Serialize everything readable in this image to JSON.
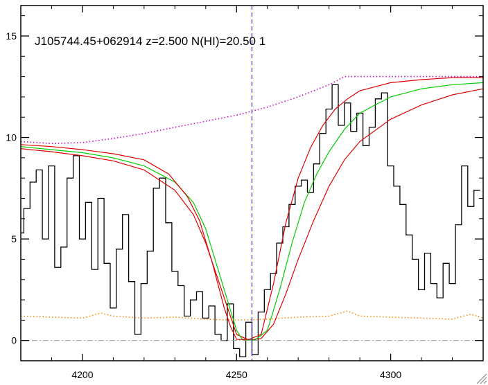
{
  "chart_data": {
    "type": "line",
    "title": "J105744.45+062914 z=2.500 N(HI)=20.50 1",
    "xlabel": "",
    "ylabel": "",
    "xlim": [
      4180,
      4330
    ],
    "ylim": [
      -1,
      16.5
    ],
    "x_ticks": [
      4200,
      4250,
      4300
    ],
    "y_ticks": [
      0,
      5,
      10,
      15
    ],
    "grid": false,
    "vline": {
      "x": 4255,
      "color": "#0000cc",
      "style": "dashed"
    },
    "hline": {
      "y": 0,
      "color": "#999999",
      "style": "dash-dot"
    },
    "series": [
      {
        "role": "spectrum-flux",
        "color": "#000000",
        "style": "step",
        "x": [
          4180,
          4182,
          4184,
          4186,
          4188,
          4190,
          4192,
          4194,
          4196,
          4198,
          4200,
          4202,
          4204,
          4206,
          4208,
          4210,
          4212,
          4214,
          4216,
          4218,
          4220,
          4222,
          4224,
          4226,
          4228,
          4230,
          4232,
          4234,
          4236,
          4238,
          4240,
          4242,
          4244,
          4246,
          4248,
          4250,
          4252,
          4254,
          4256,
          4258,
          4260,
          4262,
          4264,
          4266,
          4268,
          4270,
          4272,
          4274,
          4276,
          4278,
          4280,
          4282,
          4284,
          4286,
          4288,
          4290,
          4292,
          4294,
          4296,
          4298,
          4300,
          4302,
          4304,
          4306,
          4308,
          4310,
          4312,
          4314,
          4316,
          4318,
          4320,
          4322,
          4324,
          4326,
          4328
        ],
        "values": [
          5.3,
          6.5,
          7.8,
          8.4,
          5.0,
          8.6,
          3.6,
          4.6,
          8.0,
          9.1,
          5.0,
          6.8,
          3.5,
          7.0,
          3.8,
          1.6,
          4.5,
          6.2,
          2.9,
          0.3,
          2.8,
          4.4,
          7.5,
          8.0,
          5.8,
          3.4,
          2.7,
          1.2,
          2.0,
          2.4,
          1.1,
          1.7,
          0.3,
          0.0,
          1.8,
          -0.4,
          -0.8,
          0.9,
          -0.7,
          1.4,
          2.5,
          3.3,
          4.8,
          5.6,
          6.7,
          7.6,
          7.9,
          7.3,
          8.7,
          10.2,
          11.4,
          12.6,
          10.6,
          11.7,
          10.3,
          11.2,
          9.6,
          10.5,
          11.9,
          12.2,
          8.6,
          7.6,
          6.7,
          5.2,
          4.0,
          2.5,
          4.3,
          2.8,
          2.1,
          3.8,
          2.8,
          5.7,
          8.6,
          6.6,
          7.4
        ]
      },
      {
        "role": "continuum",
        "color": "#cc00cc",
        "style": "dotted",
        "x": [
          4180,
          4190,
          4200,
          4210,
          4220,
          4230,
          4240,
          4250,
          4260,
          4270,
          4280,
          4285,
          4290,
          4300,
          4310,
          4320,
          4330
        ],
        "values": [
          9.8,
          9.7,
          9.75,
          9.95,
          10.2,
          10.5,
          10.8,
          11.1,
          11.5,
          12.0,
          12.6,
          13.0,
          13.0,
          13.0,
          13.0,
          13.0,
          13.0
        ]
      },
      {
        "role": "error",
        "color": "#ff8800",
        "style": "dotted",
        "x": [
          4180,
          4190,
          4200,
          4206,
          4210,
          4220,
          4230,
          4240,
          4250,
          4260,
          4270,
          4280,
          4286,
          4290,
          4300,
          4310,
          4320,
          4326,
          4330
        ],
        "values": [
          1.2,
          1.15,
          1.1,
          1.35,
          1.2,
          1.1,
          1.15,
          1.05,
          1.0,
          1.05,
          1.15,
          1.2,
          1.45,
          1.2,
          1.15,
          1.1,
          1.05,
          1.3,
          1.1
        ]
      },
      {
        "role": "fit-lower",
        "color": "#dd0000",
        "style": "solid",
        "x": [
          4180,
          4190,
          4200,
          4210,
          4220,
          4230,
          4236,
          4240,
          4244,
          4248,
          4250,
          4254,
          4258,
          4262,
          4266,
          4270,
          4275,
          4280,
          4285,
          4290,
          4300,
          4310,
          4320,
          4330
        ],
        "values": [
          9.45,
          9.3,
          9.1,
          8.85,
          8.4,
          7.4,
          6.2,
          4.8,
          3.0,
          1.2,
          0.3,
          0.02,
          0.1,
          0.8,
          2.3,
          4.0,
          5.9,
          7.6,
          8.9,
          9.8,
          10.9,
          11.6,
          12.1,
          12.4
        ]
      },
      {
        "role": "fit-best",
        "color": "#00cc00",
        "style": "solid",
        "x": [
          4180,
          4190,
          4200,
          4210,
          4220,
          4230,
          4236,
          4240,
          4244,
          4248,
          4250,
          4252,
          4256,
          4260,
          4264,
          4268,
          4272,
          4276,
          4280,
          4285,
          4290,
          4300,
          4310,
          4320,
          4330
        ],
        "values": [
          9.55,
          9.4,
          9.25,
          9.0,
          8.6,
          7.8,
          6.8,
          5.5,
          3.5,
          1.5,
          0.5,
          0.02,
          0.02,
          0.5,
          2.5,
          4.8,
          6.8,
          8.2,
          9.3,
          10.4,
          11.2,
          12.0,
          12.4,
          12.6,
          12.7
        ]
      },
      {
        "role": "fit-upper",
        "color": "#dd0000",
        "style": "solid",
        "x": [
          4180,
          4190,
          4200,
          4210,
          4220,
          4228,
          4234,
          4238,
          4242,
          4246,
          4248,
          4250,
          4254,
          4258,
          4262,
          4266,
          4270,
          4274,
          4278,
          4282,
          4286,
          4290,
          4300,
          4310,
          4320,
          4330
        ],
        "values": [
          9.65,
          9.55,
          9.4,
          9.2,
          8.9,
          8.2,
          7.1,
          5.9,
          3.9,
          1.6,
          0.7,
          0.05,
          0.05,
          0.3,
          2.8,
          5.8,
          8.0,
          9.5,
          10.6,
          11.4,
          11.9,
          12.3,
          12.7,
          12.85,
          12.95,
          12.95
        ]
      }
    ]
  },
  "corner_icon": "resize-grip-icon"
}
